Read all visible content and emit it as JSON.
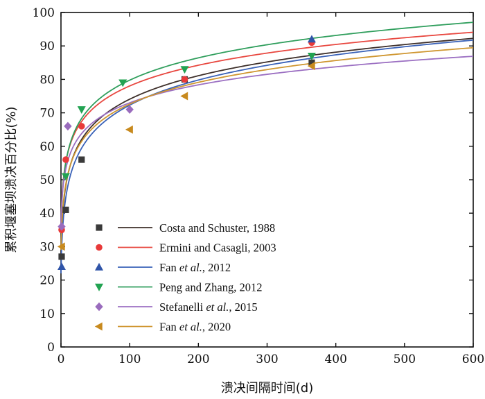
{
  "chart_data": {
    "type": "scatter",
    "title": "",
    "xlabel": "溃决间隔时间(d)",
    "ylabel": "累积堰塞坝溃决百分比(%)",
    "xlim": [
      0,
      600
    ],
    "ylim": [
      0,
      100
    ],
    "xticks": [
      0,
      100,
      200,
      300,
      400,
      500,
      600
    ],
    "yticks": [
      0,
      10,
      20,
      30,
      40,
      50,
      60,
      70,
      80,
      90,
      100
    ],
    "grid": false,
    "legend_position": "bottom-left",
    "series": [
      {
        "name": "Costa and Schuster, 1988",
        "label_parts": [
          {
            "text": "Costa and Schuster, 1988",
            "italic": false
          }
        ],
        "marker": "square",
        "color": "#3a3a3a",
        "line_color": "#3d2f2a",
        "points": [
          [
            1,
            27
          ],
          [
            7,
            41
          ],
          [
            30,
            56
          ],
          [
            180,
            80
          ],
          [
            365,
            85
          ]
        ],
        "fit": {
          "a": 27.0,
          "b": 10.2
        }
      },
      {
        "name": "Ermini and Casagli, 2003",
        "label_parts": [
          {
            "text": "Ermini and Casagli, 2003",
            "italic": false
          }
        ],
        "marker": "circle",
        "color": "#e83a3a",
        "line_color": "#e8473f",
        "points": [
          [
            1,
            35
          ],
          [
            7,
            56
          ],
          [
            30,
            66
          ],
          [
            180,
            80
          ],
          [
            365,
            91
          ]
        ],
        "fit": {
          "a": 36.5,
          "b": 9.0
        }
      },
      {
        "name": "Fan et al., 2012",
        "label_parts": [
          {
            "text": "Fan ",
            "italic": false
          },
          {
            "text": "et al.",
            "italic": true
          },
          {
            "text": ", 2012",
            "italic": false
          }
        ],
        "marker": "triangle-up",
        "color": "#2f54a8",
        "line_color": "#3a62b8",
        "points": [
          [
            1,
            24
          ],
          [
            365,
            92
          ]
        ],
        "fit": {
          "a": 22.0,
          "b": 10.9
        }
      },
      {
        "name": "Peng and Zhang, 2012",
        "label_parts": [
          {
            "text": "Peng and Zhang, 2012",
            "italic": false
          }
        ],
        "marker": "triangle-down",
        "color": "#22a352",
        "line_color": "#2f9e5c",
        "points": [
          [
            7,
            51
          ],
          [
            30,
            71
          ],
          [
            90,
            79
          ],
          [
            180,
            83
          ],
          [
            365,
            87
          ]
        ],
        "fit": {
          "a": 35.0,
          "b": 9.7
        }
      },
      {
        "name": "Stefanelli et al., 2015",
        "label_parts": [
          {
            "text": "Stefanelli ",
            "italic": false
          },
          {
            "text": "et al.",
            "italic": true
          },
          {
            "text": ", 2015",
            "italic": false
          }
        ],
        "marker": "diamond",
        "color": "#9a6cbd",
        "line_color": "#9b6fc2",
        "points": [
          [
            1,
            36
          ],
          [
            10,
            66
          ],
          [
            100,
            71
          ]
        ],
        "fit": {
          "a": 37.0,
          "b": 7.8
        }
      },
      {
        "name": "Fan et al., 2020",
        "label_parts": [
          {
            "text": "Fan ",
            "italic": false
          },
          {
            "text": "et al.",
            "italic": true
          },
          {
            "text": ", 2020",
            "italic": false
          }
        ],
        "marker": "triangle-left",
        "color": "#c88a1e",
        "line_color": "#cf9630",
        "points": [
          [
            1,
            30
          ],
          [
            100,
            65
          ],
          [
            180,
            75
          ],
          [
            365,
            84
          ]
        ],
        "fit": {
          "a": 29.0,
          "b": 9.45
        }
      }
    ]
  }
}
